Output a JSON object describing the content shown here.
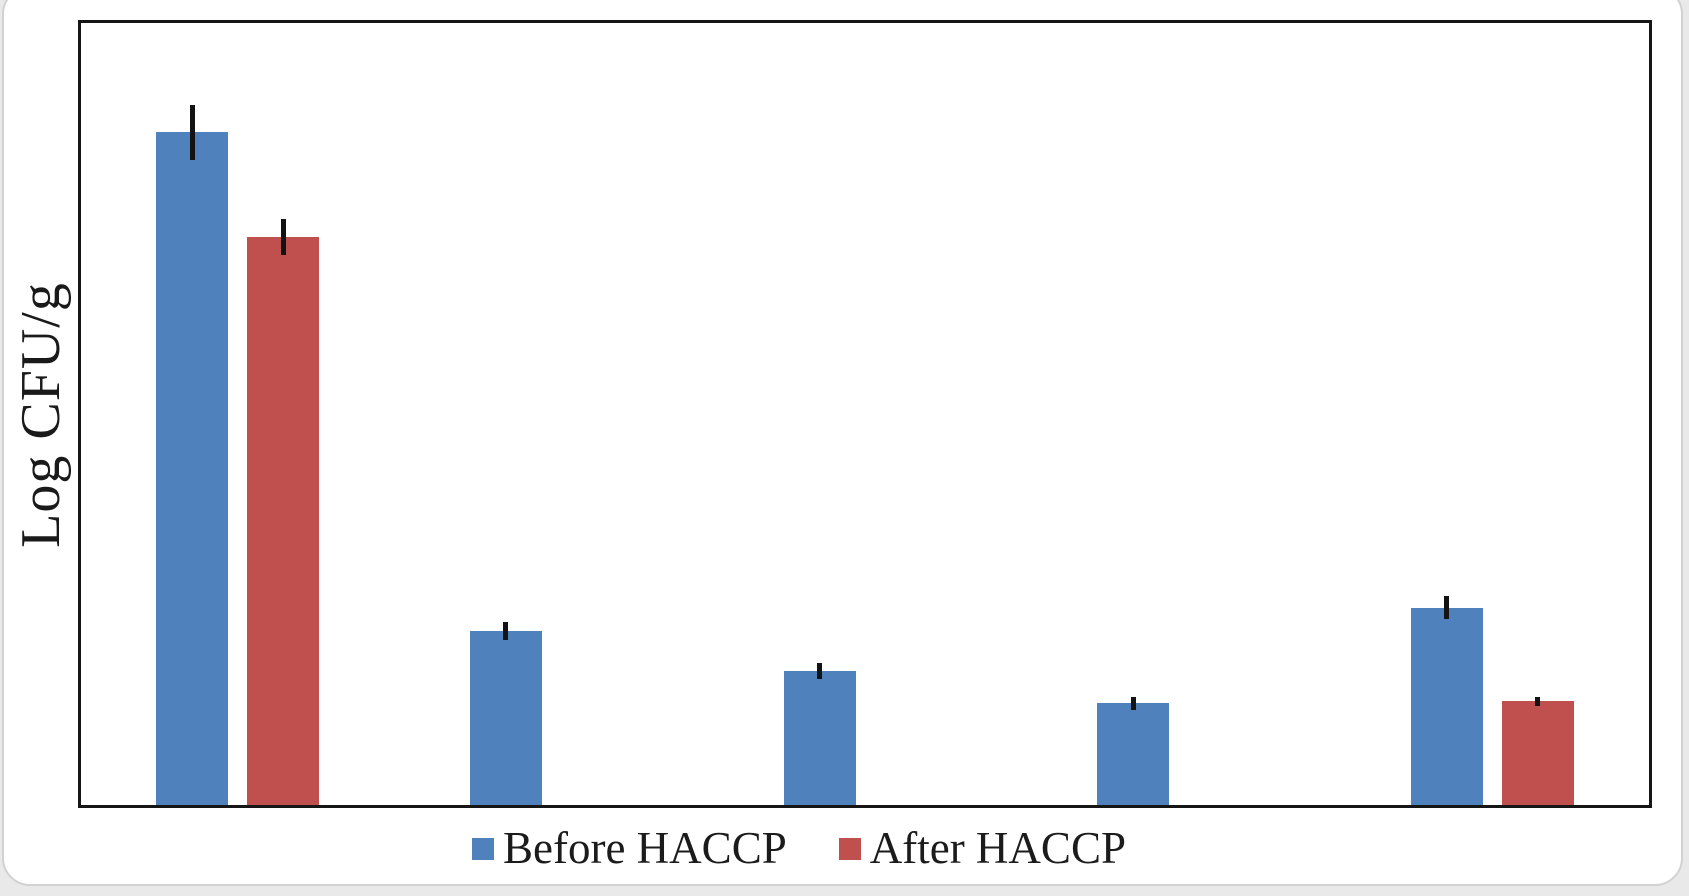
{
  "chart_data": {
    "type": "bar",
    "title": "",
    "xlabel": "",
    "ylabel": "Log CFU/g",
    "ylim": [
      0,
      8
    ],
    "grid": false,
    "legend_position": "bottom-center",
    "categories": [
      "",
      "",
      "",
      "",
      ""
    ],
    "series": [
      {
        "name": "Before HACCP",
        "color": "#4F81BD",
        "values": [
          6.88,
          1.78,
          1.37,
          1.04,
          2.02
        ],
        "errors": [
          0.28,
          0.09,
          0.08,
          0.07,
          0.12
        ]
      },
      {
        "name": "After HACCP",
        "color": "#C0504D",
        "values": [
          5.81,
          0,
          0,
          0,
          1.06
        ],
        "errors": [
          0.18,
          0,
          0,
          0,
          0.05
        ]
      }
    ],
    "error_bar_color": "#131313",
    "axis_border_color": "#161616"
  }
}
